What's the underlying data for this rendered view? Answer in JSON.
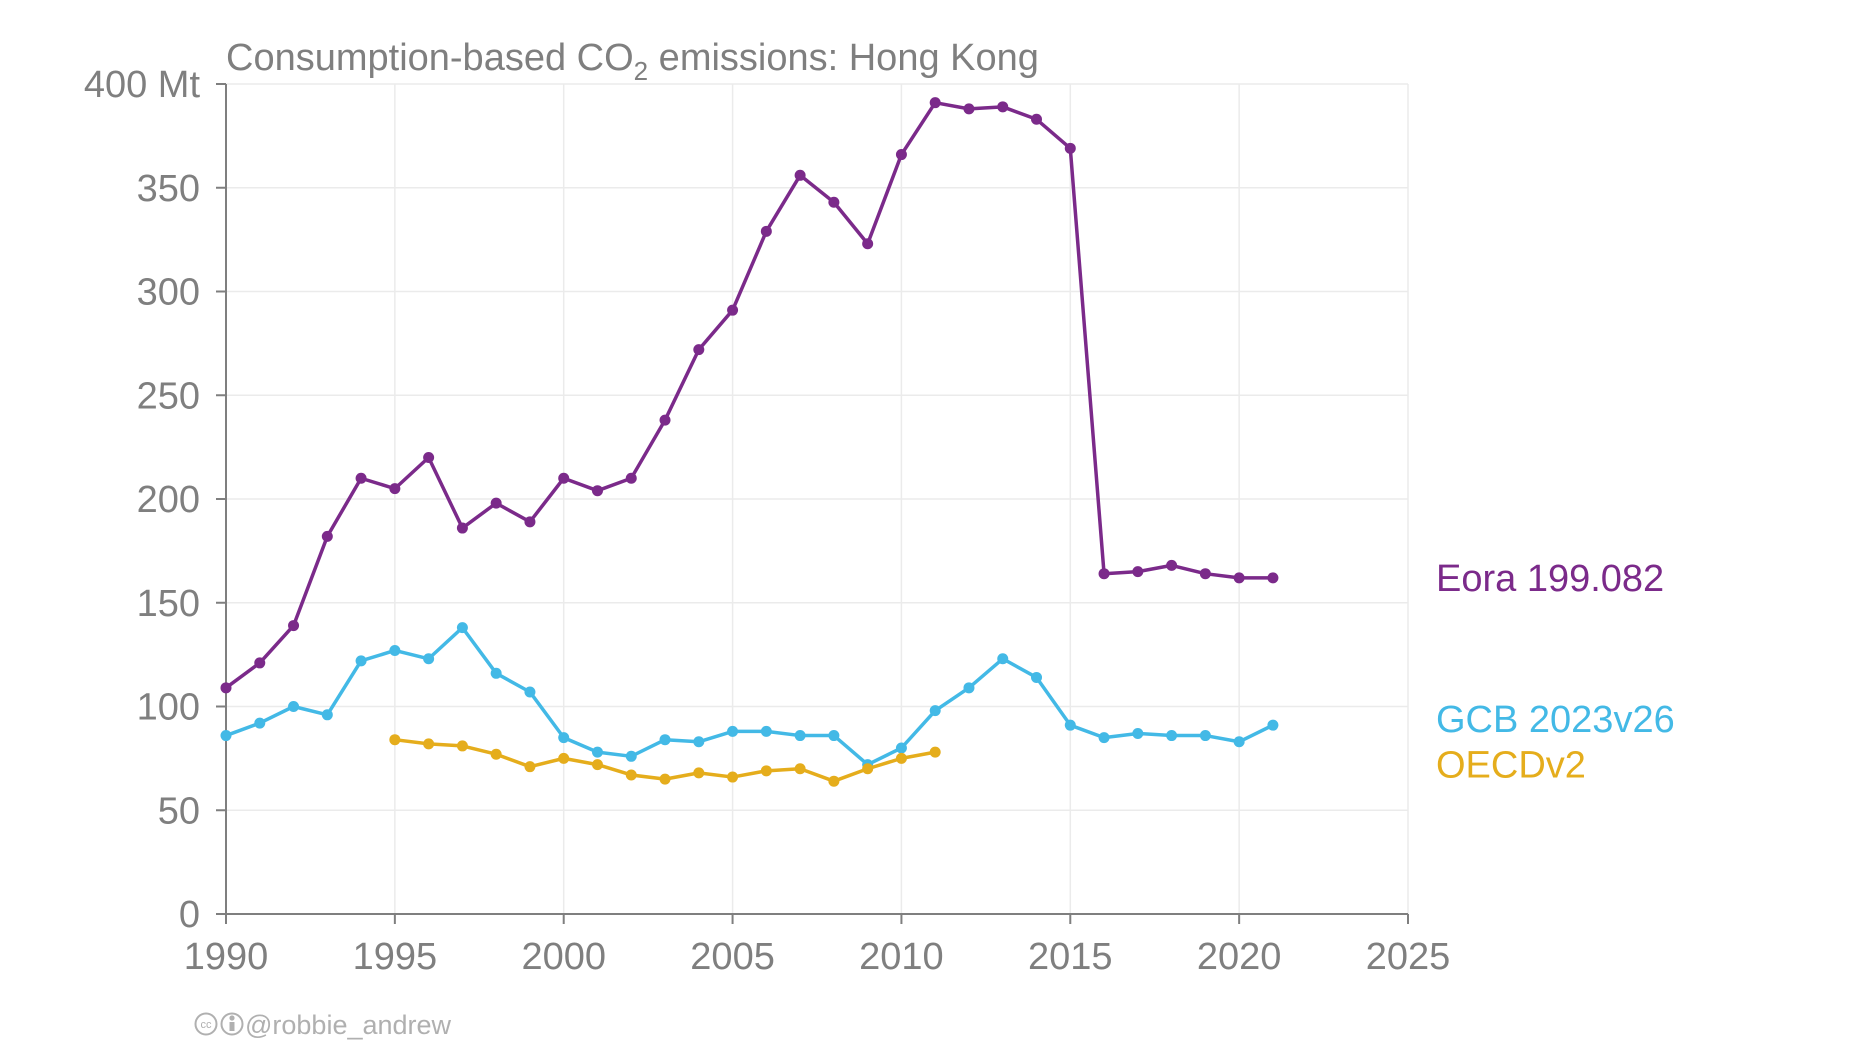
{
  "chart_data": {
    "type": "line",
    "title_main": "Consumption-based CO",
    "title_sub": "2",
    "title_rest": " emissions: Hong Kong",
    "y_unit": "Mt",
    "xlim": [
      1990,
      2025
    ],
    "ylim": [
      0,
      400
    ],
    "x_ticks": [
      1990,
      1995,
      2000,
      2005,
      2010,
      2015,
      2020,
      2025
    ],
    "y_ticks": [
      0,
      50,
      100,
      150,
      200,
      250,
      300,
      350,
      400
    ],
    "grid": true,
    "legend": "right, inline labels at series ends",
    "series": [
      {
        "name": "Eora 199.082",
        "color": "#7b2a8a",
        "x": [
          1990,
          1991,
          1992,
          1993,
          1994,
          1995,
          1996,
          1997,
          1998,
          1999,
          2000,
          2001,
          2002,
          2003,
          2004,
          2005,
          2006,
          2007,
          2008,
          2009,
          2010,
          2011,
          2012,
          2013,
          2014,
          2015,
          2016,
          2017,
          2018,
          2019,
          2020,
          2021
        ],
        "values": [
          109,
          121,
          139,
          182,
          210,
          205,
          220,
          186,
          198,
          189,
          210,
          204,
          210,
          238,
          272,
          291,
          329,
          356,
          343,
          323,
          366,
          391,
          388,
          389,
          383,
          369,
          164,
          165,
          168,
          164,
          162,
          162
        ]
      },
      {
        "name": "GCB 2023v26",
        "color": "#43b9e6",
        "x": [
          1990,
          1991,
          1992,
          1993,
          1994,
          1995,
          1996,
          1997,
          1998,
          1999,
          2000,
          2001,
          2002,
          2003,
          2004,
          2005,
          2006,
          2007,
          2008,
          2009,
          2010,
          2011,
          2012,
          2013,
          2014,
          2015,
          2016,
          2017,
          2018,
          2019,
          2020,
          2021
        ],
        "values": [
          86,
          92,
          100,
          96,
          122,
          127,
          123,
          138,
          116,
          107,
          85,
          78,
          76,
          84,
          83,
          88,
          88,
          86,
          86,
          72,
          80,
          98,
          109,
          123,
          114,
          91,
          85,
          87,
          86,
          86,
          83,
          91
        ]
      },
      {
        "name": "OECDv2",
        "color": "#e5ad1c",
        "x": [
          1995,
          1996,
          1997,
          1998,
          1999,
          2000,
          2001,
          2002,
          2003,
          2004,
          2005,
          2006,
          2007,
          2008,
          2009,
          2010,
          2011
        ],
        "values": [
          84,
          82,
          81,
          77,
          71,
          75,
          72,
          67,
          65,
          68,
          66,
          69,
          70,
          64,
          70,
          75,
          78
        ]
      }
    ]
  },
  "credit": {
    "icons": "cc-by-icons",
    "text": "@robbie_andrew"
  }
}
